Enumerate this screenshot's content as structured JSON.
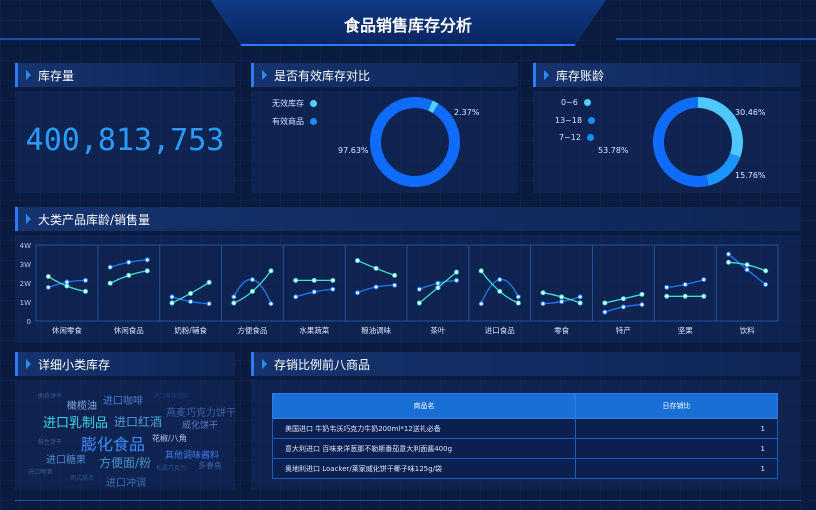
{
  "title": "食品销售库存分析",
  "inventory": {
    "header": "库存量",
    "value": "400,813,753"
  },
  "valid": {
    "header": "是否有效库存对比",
    "legend": [
      {
        "label": "无效库存",
        "color": "#4fd2ff"
      },
      {
        "label": "有效商品",
        "color": "#1a8cff"
      }
    ],
    "slices": [
      {
        "label": "无效库存",
        "pct": 2.37,
        "text": "2.37%",
        "color": "#4fd2ff"
      },
      {
        "label": "有效商品",
        "pct": 97.63,
        "text": "97.63%",
        "color": "#0f6cff"
      }
    ]
  },
  "aging": {
    "header": "库存账龄",
    "legend": [
      {
        "label": "0~6",
        "color": "#4fd2ff"
      },
      {
        "label": "13~18",
        "color": "#1a8cff"
      },
      {
        "label": "7~12",
        "color": "#1a8cff"
      }
    ],
    "slices": [
      {
        "label": "0~6",
        "pct": 30.46,
        "text": "30.46%",
        "color": "#4fc8ff"
      },
      {
        "label": "13~18",
        "pct": 15.76,
        "text": "15.76%",
        "color": "#1a95ff"
      },
      {
        "label": "7~12",
        "pct": 53.78,
        "text": "53.78%",
        "color": "#0f6cff"
      }
    ]
  },
  "chart_data": {
    "type": "line",
    "title": "大类产品库龄/销售量",
    "ylim": [
      0,
      4
    ],
    "yticks": [
      "0",
      "1W",
      "2W",
      "3W",
      "4W"
    ],
    "categories": [
      "休闲零食",
      "休闲食品",
      "奶粉/辅食",
      "方便食品",
      "水果蔬菜",
      "粮油调味",
      "茶叶",
      "进口食品",
      "零食",
      "特产",
      "坚果",
      "饮料"
    ],
    "series": [
      {
        "color": "#1e7bff",
        "values": [
          [
            1.77,
            2.05,
            2.14
          ],
          [
            2.83,
            3.09,
            3.22
          ],
          [
            1.27,
            1.02,
            0.91
          ],
          [
            1.27,
            2.18,
            0.91
          ],
          [
            1.27,
            1.53,
            1.67
          ],
          [
            1.49,
            1.79,
            1.88
          ],
          [
            1.67,
            1.99,
            2.14
          ],
          [
            0.91,
            2.18,
            1.27
          ],
          [
            0.91,
            1.02,
            1.27
          ],
          [
            0.47,
            0.74,
            0.86
          ],
          [
            1.77,
            1.92,
            2.18
          ],
          [
            3.52,
            2.7,
            1.92
          ]
        ]
      },
      {
        "color": "#3fe0d0",
        "values": [
          [
            2.34,
            1.84,
            1.56
          ],
          [
            1.99,
            2.4,
            2.64
          ],
          [
            0.95,
            1.45,
            2.03
          ],
          [
            0.95,
            1.56,
            2.64
          ],
          [
            2.14,
            2.14,
            2.14
          ],
          [
            3.18,
            2.77,
            2.4
          ],
          [
            0.95,
            1.75,
            2.57
          ],
          [
            2.64,
            1.56,
            0.95
          ],
          [
            1.49,
            1.27,
            0.95
          ],
          [
            0.95,
            1.17,
            1.4
          ],
          [
            1.3,
            1.3,
            1.3
          ],
          [
            3.09,
            2.96,
            2.64
          ]
        ]
      }
    ],
    "grid": true
  },
  "wordcloud": {
    "header": "详细小类库存",
    "words": [
      "曲奇饼干",
      "橄榄油",
      "进口咖啡",
      "进口果味饮料",
      "进口乳制品",
      "进口红酒",
      "燕麦巧克力饼干",
      "威化饼干",
      "酥性饼干",
      "膨化食品",
      "花椒/八角",
      "进口糖果",
      "方便面/粉",
      "其他调味酱料",
      "进口啤酒",
      "松露巧克力",
      "多春鱼",
      "西式糕点",
      "进口冲调"
    ]
  },
  "ratio": {
    "header": "存销比例前八商品",
    "columns": [
      "商品名",
      "日存销比"
    ],
    "rows": [
      [
        "美国进口 牛奶韦沃巧克力牛奶200ml*12送礼必备",
        "1"
      ],
      [
        "意大利进口 百味来洋葱那不勒斯番茄意大利面酱400g",
        "1"
      ],
      [
        "奥地利进口 Loacker/莱家威化饼干椰子味125g/袋",
        "1"
      ]
    ]
  }
}
